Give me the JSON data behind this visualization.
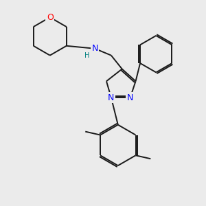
{
  "background_color": "#ebebeb",
  "atom_colors": {
    "C": "#1a1a1a",
    "N": "#0000ff",
    "O": "#ff0000",
    "H": "#008080"
  },
  "bond_color": "#1a1a1a",
  "bond_width": 1.4,
  "font_size_atom": 9,
  "fig_width": 3.0,
  "fig_height": 3.0,
  "dpi": 100
}
